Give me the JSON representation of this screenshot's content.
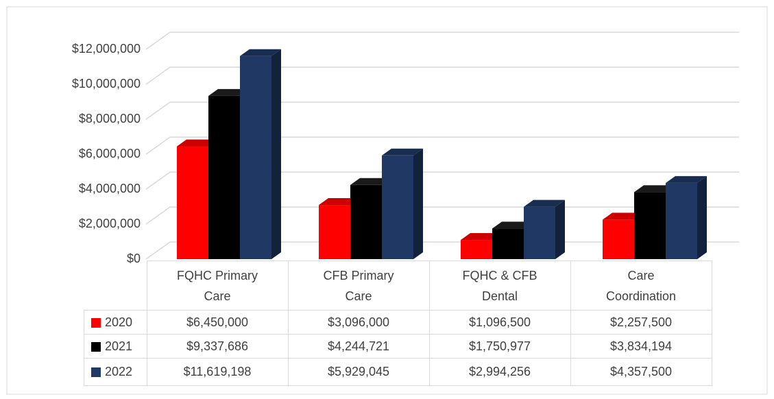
{
  "chart_data": {
    "type": "bar3d",
    "categories": [
      "FQHC Primary Care",
      "CFB Primary Care",
      "FQHC & CFB Dental",
      "Care Coordination"
    ],
    "series": [
      {
        "name": "2020",
        "color": "#ff0000",
        "values": [
          6450000,
          3096000,
          1096500,
          2257500
        ],
        "value_labels": [
          "$6,450,000",
          "$3,096,000",
          "$1,096,500",
          "$2,257,500"
        ]
      },
      {
        "name": "2021",
        "color": "#000000",
        "values": [
          9337686,
          4244721,
          1750977,
          3834194
        ],
        "value_labels": [
          "$9,337,686",
          "$4,244,721",
          "$1,750,977",
          "$3,834,194"
        ]
      },
      {
        "name": "2022",
        "color": "#1f3864",
        "values": [
          11619198,
          5929045,
          2994256,
          4357500
        ],
        "value_labels": [
          "$11,619,198",
          "$5,929,045",
          "$2,994,256",
          "$4,357,500"
        ]
      }
    ],
    "ylim": [
      0,
      12000000
    ],
    "yticks": [
      {
        "value": 0,
        "label": "$0"
      },
      {
        "value": 2000000,
        "label": "$2,000,000"
      },
      {
        "value": 4000000,
        "label": "$4,000,000"
      },
      {
        "value": 6000000,
        "label": "$6,000,000"
      },
      {
        "value": 8000000,
        "label": "$8,000,000"
      },
      {
        "value": 10000000,
        "label": "$10,000,000"
      },
      {
        "value": 12000000,
        "label": "$12,000,000"
      }
    ],
    "grid": true,
    "legend": "table"
  }
}
